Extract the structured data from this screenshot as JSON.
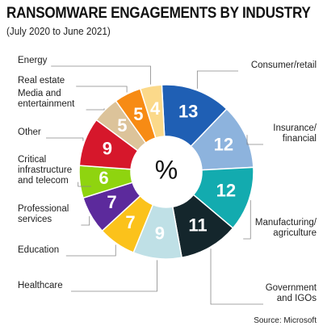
{
  "chart_data": {
    "type": "pie",
    "title": "RANSOMWARE ENGAGEMENTS BY INDUSTRY",
    "subtitle": "(July 2020 to June 2021)",
    "center_label": "%",
    "source": "Source: Microsoft",
    "slices": [
      {
        "label": [
          "Consumer/retail"
        ],
        "value": 13,
        "color": "#1f5fb4",
        "text_color": "#ffffff"
      },
      {
        "label": [
          "Insurance/",
          "financial"
        ],
        "value": 12,
        "color": "#8db3dd",
        "text_color": "#ffffff"
      },
      {
        "label": [
          "Manufacturing/",
          "agriculture"
        ],
        "value": 12,
        "color": "#13abaf",
        "text_color": "#ffffff"
      },
      {
        "label": [
          "Government",
          "and IGOs"
        ],
        "value": 11,
        "color": "#14262c",
        "text_color": "#ffffff"
      },
      {
        "label": [
          "Healthcare"
        ],
        "value": 9,
        "color": "#bfe0e6",
        "text_color": "#ffffff"
      },
      {
        "label": [
          "Education"
        ],
        "value": 7,
        "color": "#fbc21b",
        "text_color": "#ffffff"
      },
      {
        "label": [
          "Professional",
          "services"
        ],
        "value": 7,
        "color": "#5c2a9c",
        "text_color": "#ffffff"
      },
      {
        "label": [
          "Critical",
          "infrastructure",
          "and telecom"
        ],
        "value": 6,
        "color": "#8fd40f",
        "text_color": "#ffffff"
      },
      {
        "label": [
          "Other"
        ],
        "value": 9,
        "color": "#d6172b",
        "text_color": "#ffffff"
      },
      {
        "label": [
          "Media and",
          "entertainment"
        ],
        "value": 5,
        "color": "#dcc39a",
        "text_color": "#ffffff"
      },
      {
        "label": [
          "Real estate"
        ],
        "value": 5,
        "color": "#f78b14",
        "text_color": "#ffffff"
      },
      {
        "label": [
          "Energy"
        ],
        "value": 4,
        "color": "#fbd98a",
        "text_color": "#ffffff"
      }
    ]
  }
}
